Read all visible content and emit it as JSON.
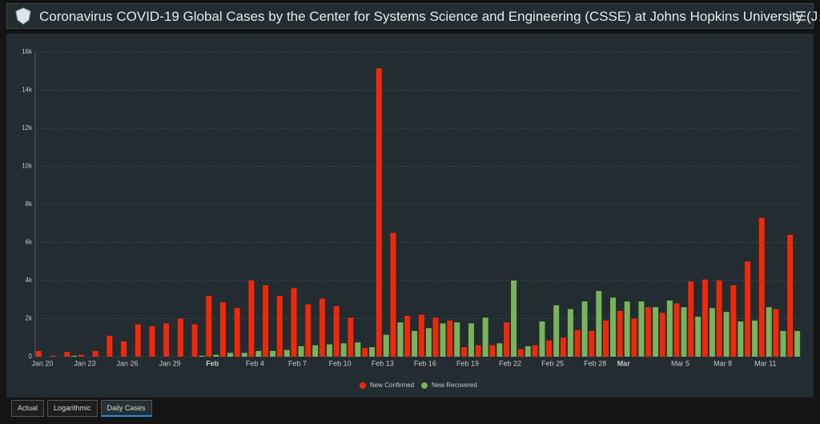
{
  "header": {
    "title": "Coronavirus COVID-19 Global Cases by the Center for Systems Science and Engineering (CSSE) at Johns Hopkins University (J…"
  },
  "tabs": [
    "Actual",
    "Logarithmic",
    "Daily Cases"
  ],
  "chart_data": {
    "type": "bar",
    "categories": [
      "Jan 20",
      null,
      null,
      "Jan 23",
      null,
      null,
      "Jan 26",
      null,
      null,
      "Jan 29",
      null,
      null,
      "Feb",
      null,
      null,
      "Feb 4",
      null,
      null,
      "Feb 7",
      null,
      null,
      "Feb 10",
      null,
      null,
      "Feb 13",
      null,
      null,
      "Feb 16",
      null,
      null,
      "Feb 19",
      null,
      null,
      "Feb 22",
      null,
      null,
      "Feb 25",
      null,
      null,
      "Feb 28",
      null,
      "Mar",
      null,
      null,
      null,
      "Mar 5",
      null,
      null,
      "Mar 8",
      null,
      null,
      "Mar 11",
      null,
      null
    ],
    "series": [
      {
        "name": "New Confirmed",
        "color": "#f0280a",
        "values": [
          300,
          50,
          250,
          100,
          300,
          1100,
          800,
          1700,
          1600,
          1750,
          2000,
          1700,
          3200,
          2850,
          2550,
          4000,
          3750,
          3200,
          3600,
          2750,
          3050,
          2650,
          2050,
          450,
          15150,
          6500,
          2150,
          2200,
          2050,
          1900,
          500,
          600,
          600,
          1800,
          400,
          600,
          850,
          1000,
          1400,
          1350,
          1900,
          2400,
          2000,
          2600,
          2300,
          2800,
          3950,
          4050,
          4000,
          3750,
          5000,
          7300,
          2500,
          6400
        ]
      },
      {
        "name": "New Recovered",
        "color": "#78b45a",
        "values": [
          0,
          0,
          50,
          0,
          0,
          0,
          0,
          0,
          0,
          0,
          0,
          50,
          100,
          200,
          200,
          300,
          300,
          350,
          550,
          600,
          650,
          700,
          750,
          500,
          1150,
          1800,
          1350,
          1500,
          1750,
          1800,
          1750,
          2050,
          700,
          4000,
          550,
          1850,
          2700,
          2500,
          2900,
          3450,
          3100,
          2900,
          2900,
          2600,
          2950,
          2600,
          2100,
          2550,
          2350,
          1850,
          1900,
          2600,
          1350,
          1350
        ]
      }
    ],
    "ylim": [
      0,
      16000
    ],
    "yticks": [
      0,
      {
        "value": 2000,
        "label": "2k"
      },
      {
        "value": 4000,
        "label": "4k"
      },
      {
        "value": 6000,
        "label": "6k"
      },
      {
        "value": 8000,
        "label": "8k"
      },
      {
        "value": 10000,
        "label": "10k"
      },
      {
        "value": 12000,
        "label": "12k"
      },
      {
        "value": 14000,
        "label": "14k"
      },
      {
        "value": 16000,
        "label": "16k"
      }
    ],
    "grid": true,
    "legend": "bottom"
  }
}
